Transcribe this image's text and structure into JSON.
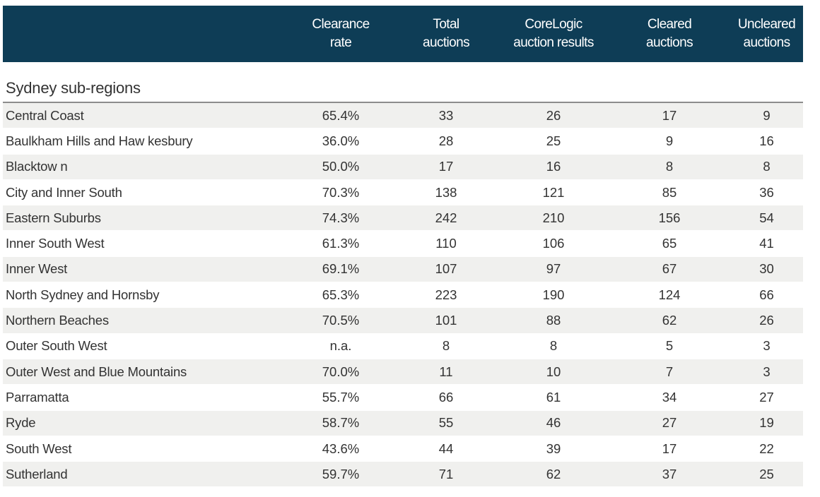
{
  "header": {
    "columns": [
      "",
      "Clearance\nrate",
      "Total\nauctions",
      "CoreLogic\nauction results",
      "Cleared\nauctions",
      "Uncleared\nauctions"
    ]
  },
  "section_title": "Sydney sub-regions",
  "rows": [
    {
      "name": "Central Coast",
      "rate": "65.4%",
      "total": "33",
      "results": "26",
      "cleared": "17",
      "uncleared": "9"
    },
    {
      "name": "Baulkham Hills and Haw kesbury",
      "rate": "36.0%",
      "total": "28",
      "results": "25",
      "cleared": "9",
      "uncleared": "16"
    },
    {
      "name": "Blacktow n",
      "rate": "50.0%",
      "total": "17",
      "results": "16",
      "cleared": "8",
      "uncleared": "8"
    },
    {
      "name": "City and Inner South",
      "rate": "70.3%",
      "total": "138",
      "results": "121",
      "cleared": "85",
      "uncleared": "36"
    },
    {
      "name": "Eastern Suburbs",
      "rate": "74.3%",
      "total": "242",
      "results": "210",
      "cleared": "156",
      "uncleared": "54"
    },
    {
      "name": "Inner South West",
      "rate": "61.3%",
      "total": "110",
      "results": "106",
      "cleared": "65",
      "uncleared": "41"
    },
    {
      "name": "Inner West",
      "rate": "69.1%",
      "total": "107",
      "results": "97",
      "cleared": "67",
      "uncleared": "30"
    },
    {
      "name": "North Sydney and Hornsby",
      "rate": "65.3%",
      "total": "223",
      "results": "190",
      "cleared": "124",
      "uncleared": "66"
    },
    {
      "name": "Northern Beaches",
      "rate": "70.5%",
      "total": "101",
      "results": "88",
      "cleared": "62",
      "uncleared": "26"
    },
    {
      "name": "Outer South West",
      "rate": "n.a.",
      "total": "8",
      "results": "8",
      "cleared": "5",
      "uncleared": "3"
    },
    {
      "name": "Outer West and Blue Mountains",
      "rate": "70.0%",
      "total": "11",
      "results": "10",
      "cleared": "7",
      "uncleared": "3"
    },
    {
      "name": "Parramatta",
      "rate": "55.7%",
      "total": "66",
      "results": "61",
      "cleared": "34",
      "uncleared": "27"
    },
    {
      "name": "Ryde",
      "rate": "58.7%",
      "total": "55",
      "results": "46",
      "cleared": "27",
      "uncleared": "19"
    },
    {
      "name": "South West",
      "rate": "43.6%",
      "total": "44",
      "results": "39",
      "cleared": "17",
      "uncleared": "22"
    },
    {
      "name": "Sutherland",
      "rate": "59.7%",
      "total": "71",
      "results": "62",
      "cleared": "37",
      "uncleared": "25"
    }
  ]
}
